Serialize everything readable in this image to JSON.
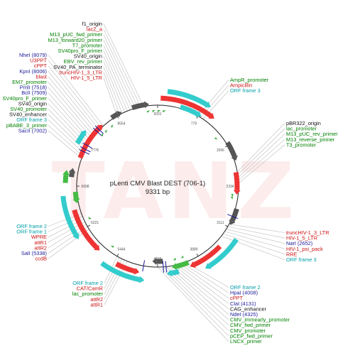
{
  "colors": {
    "black": "#111111",
    "red": "#cc1111",
    "green": "#008000",
    "blue": "#1a1a99",
    "cyan": "#009fa8",
    "feature_red": "#ee3333",
    "feature_cyan": "#33cccc",
    "feature_green": "#44bb44",
    "feature_gray": "#555555",
    "leader": "#bbbbbb",
    "watermark": "#fdecec"
  },
  "watermark": "TANZ",
  "map": {
    "name": "pLenti CMV Blast DEST (706-1)",
    "length": "9331 bp",
    "tick_labels": [
      "9331",
      "779",
      "1556",
      "2334",
      "3111",
      "3889",
      "4666",
      "5444",
      "6221",
      "6998",
      "7776",
      "8554"
    ]
  },
  "labels": {
    "left_top": [
      {
        "text": "f1_origin",
        "color": "black"
      },
      {
        "text": "lacZ_a",
        "color": "red"
      },
      {
        "text": "M13_pUC_fwd_primer",
        "color": "green"
      },
      {
        "text": "M13_forward20_primer",
        "color": "green"
      },
      {
        "text": "T7_promoter",
        "color": "green"
      },
      {
        "text": "SV40pro_F_primer",
        "color": "green"
      },
      {
        "text": "SV40_origin",
        "color": "black"
      },
      {
        "text": "EBV_rev_primer",
        "color": "green"
      },
      {
        "text": "SV40_PA_terminator",
        "color": "black"
      },
      {
        "text": "truncHIV-1_3_LTR",
        "color": "red"
      },
      {
        "text": "HIV-1_5_LTR",
        "color": "red"
      }
    ],
    "left_mid": [
      {
        "text": "NheI (8079)",
        "color": "blue"
      },
      {
        "text": "U3PPT",
        "color": "red"
      },
      {
        "text": "cPPT",
        "color": "red"
      },
      {
        "text": "KpnI (8006)",
        "color": "blue"
      },
      {
        "text": "blast",
        "color": "red"
      },
      {
        "text": "EM7_promoter",
        "color": "green"
      },
      {
        "text": "PmlI (7518)",
        "color": "blue"
      },
      {
        "text": "BclI (7509)",
        "color": "blue"
      },
      {
        "text": "SV40pro_F_primer",
        "color": "green"
      },
      {
        "text": "SV40_origin",
        "color": "black"
      },
      {
        "text": "SV40_promoter",
        "color": "green"
      },
      {
        "text": "SV40_enhancer",
        "color": "black"
      },
      {
        "text": "ORF frame 3",
        "color": "cyan"
      },
      {
        "text": "pBABE_3_primer",
        "color": "green"
      },
      {
        "text": "SacII (7002)",
        "color": "blue"
      }
    ],
    "left_low": [
      {
        "text": "ORF frame 2",
        "color": "cyan"
      },
      {
        "text": "ORF frame 1",
        "color": "cyan"
      },
      {
        "text": "WPRE",
        "color": "red"
      },
      {
        "text": "attR1",
        "color": "red"
      },
      {
        "text": "attR2",
        "color": "red"
      },
      {
        "text": "SalI (5338)",
        "color": "blue"
      },
      {
        "text": "ccdB",
        "color": "red"
      }
    ],
    "bottom_left": [
      {
        "text": "ORF frame 2",
        "color": "cyan"
      },
      {
        "text": "CAT/CamR",
        "color": "red"
      },
      {
        "text": "lac_promoter",
        "color": "green"
      },
      {
        "text": "attR2",
        "color": "red"
      },
      {
        "text": "attR1",
        "color": "red"
      }
    ],
    "right_top": [
      {
        "text": "AmpR_promoter",
        "color": "green"
      },
      {
        "text": "Ampicillin",
        "color": "red"
      },
      {
        "text": "ORF frame 3",
        "color": "cyan"
      }
    ],
    "right_mid": [
      {
        "text": "pBR322_origin",
        "color": "black"
      },
      {
        "text": "lac_promoter",
        "color": "green"
      },
      {
        "text": "M13_pUC_rev_primer",
        "color": "green"
      },
      {
        "text": "M13_reverse_primer",
        "color": "green"
      },
      {
        "text": "T3_promoter",
        "color": "green"
      }
    ],
    "right_low": [
      {
        "text": "truncHIV-1_3_LTR",
        "color": "red"
      },
      {
        "text": "HIV-1_5_LTR",
        "color": "red"
      },
      {
        "text": "NarI (2652)",
        "color": "blue"
      },
      {
        "text": "HIV-1_psi_pack",
        "color": "red"
      },
      {
        "text": "RRE",
        "color": "red"
      },
      {
        "text": "ORF frame 3",
        "color": "cyan"
      }
    ],
    "bottom_right": [
      {
        "text": "ORF frame 2",
        "color": "cyan"
      },
      {
        "text": "HpaI (4008)",
        "color": "blue"
      },
      {
        "text": "cPPT",
        "color": "red"
      },
      {
        "text": "ClaI (4131)",
        "color": "blue"
      },
      {
        "text": "CAG_enhancer",
        "color": "black"
      },
      {
        "text": "NdeI (4325)",
        "color": "blue"
      },
      {
        "text": "CMV_immearly_promoter",
        "color": "green"
      },
      {
        "text": "CMV_fwd_primer",
        "color": "green"
      },
      {
        "text": "CMV_promoter",
        "color": "green"
      },
      {
        "text": "pCEP_fwd_primer",
        "color": "green"
      },
      {
        "text": "LNCX_primer",
        "color": "green"
      }
    ]
  }
}
